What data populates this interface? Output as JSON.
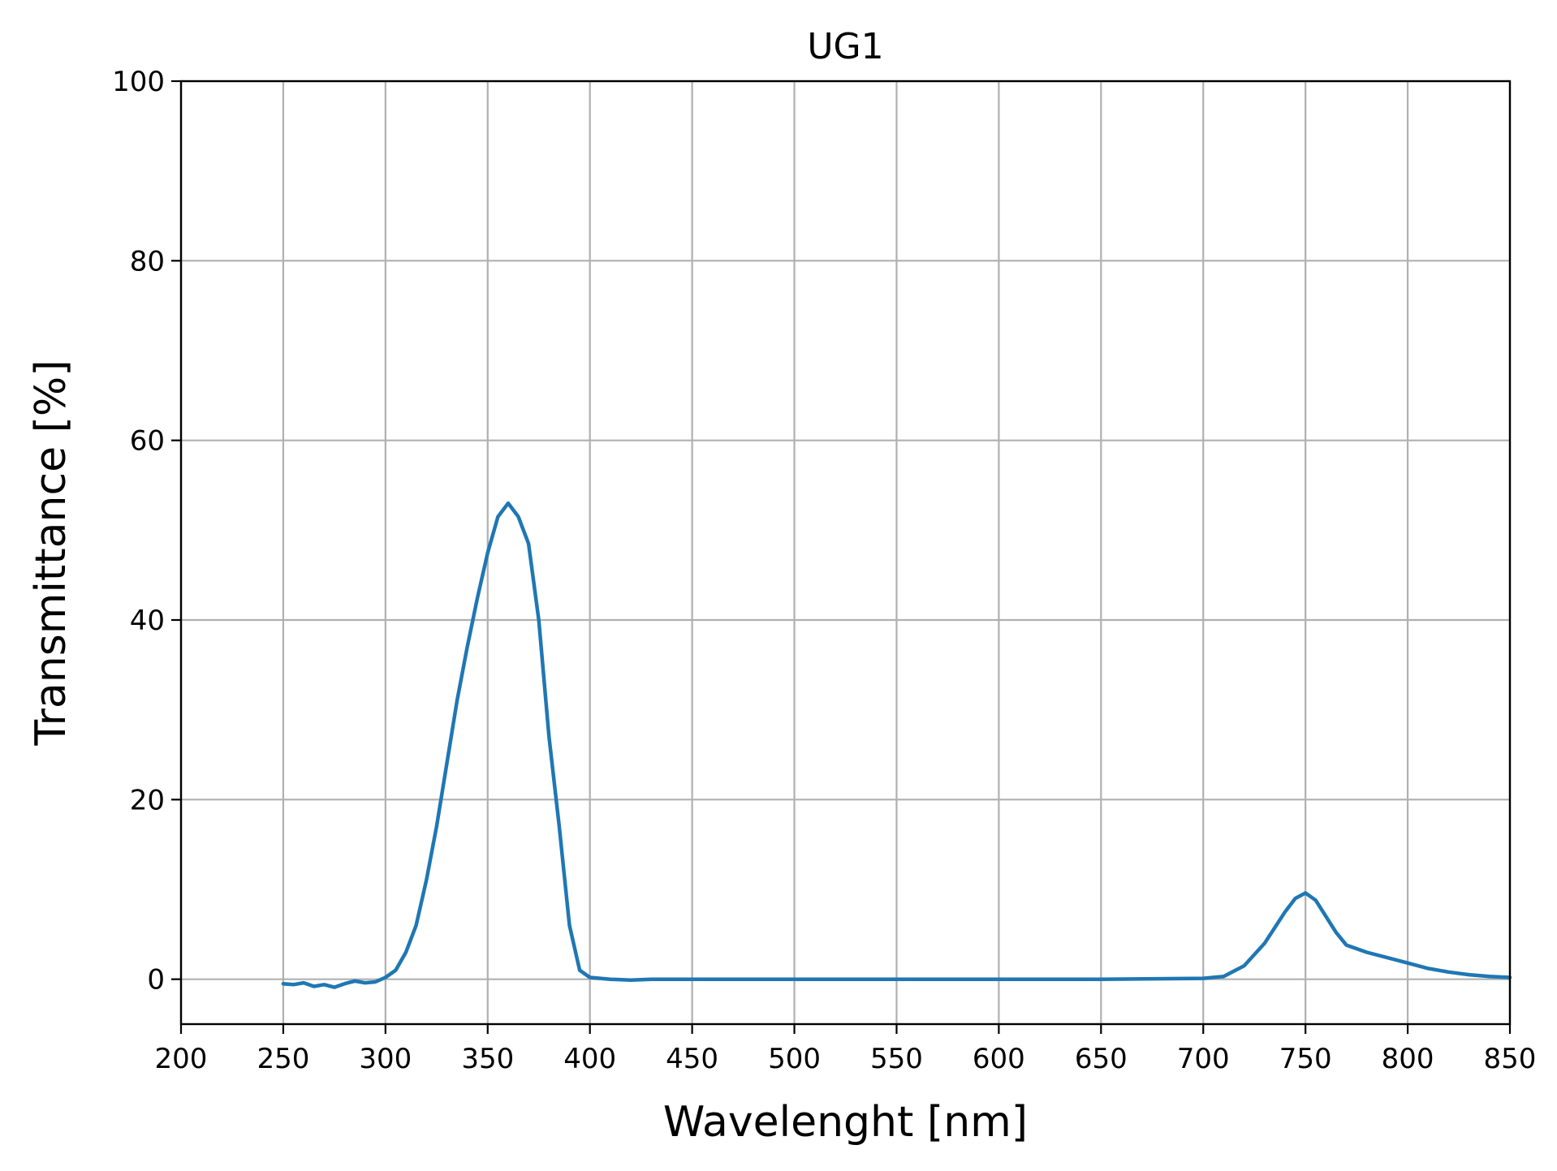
{
  "chart_data": {
    "type": "line",
    "title": "UG1",
    "xlabel": "Wavelenght [nm]",
    "ylabel": "Transmittance [%]",
    "xlim": [
      200,
      850
    ],
    "ylim": [
      -5,
      100
    ],
    "xticks": [
      200,
      250,
      300,
      350,
      400,
      450,
      500,
      550,
      600,
      650,
      700,
      750,
      800,
      850
    ],
    "yticks": [
      0,
      20,
      40,
      60,
      80,
      100
    ],
    "grid": true,
    "colors": {
      "line": "#1f77b4"
    },
    "series": [
      {
        "x": [
          250,
          255,
          260,
          265,
          270,
          275,
          280,
          285,
          290,
          295,
          300,
          305,
          310,
          315,
          320,
          325,
          330,
          335,
          340,
          345,
          350,
          355,
          360,
          365,
          370,
          375,
          380,
          385,
          390,
          395,
          400,
          410,
          420,
          430,
          450,
          500,
          550,
          600,
          650,
          700,
          710,
          720,
          730,
          740,
          745,
          750,
          755,
          760,
          765,
          770,
          780,
          790,
          800,
          810,
          820,
          830,
          840,
          850
        ],
        "values": [
          -0.5,
          -0.6,
          -0.4,
          -0.8,
          -0.6,
          -0.9,
          -0.5,
          -0.2,
          -0.4,
          -0.3,
          0.2,
          1.0,
          3.0,
          6.0,
          11.0,
          17.0,
          24.0,
          31.0,
          37.0,
          42.5,
          47.5,
          51.5,
          53.0,
          51.5,
          48.5,
          40.0,
          27.0,
          17.0,
          6.0,
          1.0,
          0.2,
          0.0,
          -0.1,
          0.0,
          0.0,
          0.0,
          0.0,
          0.0,
          0.0,
          0.1,
          0.3,
          1.5,
          4.0,
          7.5,
          9.0,
          9.6,
          8.8,
          7.0,
          5.2,
          3.8,
          3.0,
          2.4,
          1.8,
          1.2,
          0.8,
          0.5,
          0.3,
          0.2
        ]
      }
    ]
  }
}
